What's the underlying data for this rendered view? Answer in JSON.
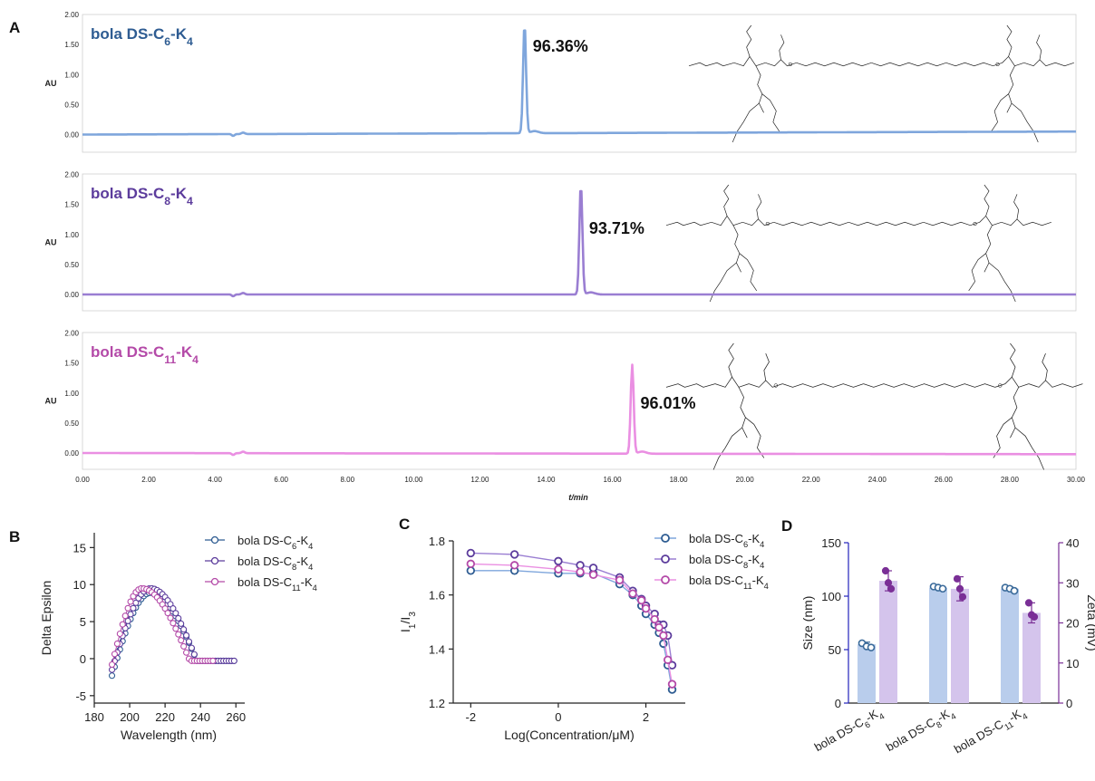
{
  "panels": {
    "A": "A",
    "B": "B",
    "C": "C",
    "D": "D"
  },
  "colors": {
    "c6": "#2e5c92",
    "c8": "#5c3c9c",
    "c11": "#b44aa8",
    "trace_c6": "#7fa6dc",
    "trace_c8": "#9a7ed2",
    "trace_c11": "#ea8fe2",
    "bar_size": "#b9cdec",
    "bar_zeta": "#d4c4ec",
    "dot_zeta": "#7a2f96",
    "dot_size": "#3a6a9a",
    "axis_size": "#2222bb",
    "axis_zeta": "#7a2f96"
  },
  "molecule_icon": "bola-dendrimer-structure",
  "chart_data": [
    {
      "type": "line",
      "id": "hplc",
      "xlabel": "t/min",
      "ylabel": "AU",
      "xlim": [
        0,
        30
      ],
      "ylim": [
        0,
        2
      ],
      "xticks": [
        "0.00",
        "2.00",
        "4.00",
        "6.00",
        "8.00",
        "10.00",
        "12.00",
        "14.00",
        "16.00",
        "18.00",
        "20.00",
        "22.00",
        "24.00",
        "26.00",
        "28.00",
        "30.00"
      ],
      "yticks": [
        "0.00",
        "0.50",
        "1.00",
        "1.50",
        "2.00"
      ],
      "traces": [
        {
          "name_main": "bola DS-C",
          "name_sub1": "6",
          "name_mid": "-K",
          "name_sub2": "4",
          "purity": "96.36%",
          "peak_time": 13.35,
          "peak_height": 1.83,
          "baseline_end": 0.05
        },
        {
          "name_main": "bola DS-C",
          "name_sub1": "8",
          "name_mid": "-K",
          "name_sub2": "4",
          "purity": "93.71%",
          "peak_time": 15.05,
          "peak_height": 1.84,
          "baseline_end": 0.0
        },
        {
          "name_main": "bola DS-C",
          "name_sub1": "11",
          "name_mid": "-K",
          "name_sub2": "4",
          "purity": "96.01%",
          "peak_time": 16.6,
          "peak_height": 1.48,
          "baseline_end": -0.02
        }
      ]
    },
    {
      "type": "scatter",
      "id": "cd",
      "xlabel": "Wavelength (nm)",
      "ylabel": "Delta Epsilon",
      "xlim": [
        180,
        265
      ],
      "ylim": [
        -6,
        17
      ],
      "xticks": [
        "180",
        "200",
        "220",
        "240",
        "260"
      ],
      "yticks": [
        "-5",
        "0",
        "5",
        "10",
        "15"
      ],
      "legend": "top-right",
      "series": [
        {
          "name_main": "bola DS-C",
          "name_sub1": "6",
          "name_mid": "-K",
          "name_sub2": "4",
          "peak_x": 212,
          "peak_y": 8.9,
          "start_y": -2.3,
          "end_x": 260
        },
        {
          "name_main": "bola DS-C",
          "name_sub1": "8",
          "name_mid": "-K",
          "name_sub2": "4",
          "peak_x": 212,
          "peak_y": 9.5,
          "start_y": -1.5,
          "end_x": 260
        },
        {
          "name_main": "bola DS-C",
          "name_sub1": "11",
          "name_mid": "-K",
          "name_sub2": "4",
          "peak_x": 207,
          "peak_y": 9.5,
          "start_y": -0.8,
          "end_x": 248
        }
      ]
    },
    {
      "type": "line",
      "id": "cac",
      "xlabel": "Log(Concentration/μM)",
      "ylabel_main": "I",
      "ylabel_sub1": "1",
      "ylabel_mid": "/I",
      "ylabel_sub2": "3",
      "xlim": [
        -2.4,
        2.9
      ],
      "ylim": [
        1.2,
        1.8
      ],
      "xticks": [
        "-2",
        "0",
        "2"
      ],
      "yticks": [
        "1.2",
        "1.4",
        "1.6",
        "1.8"
      ],
      "legend": "top-right",
      "x": [
        -2,
        -1,
        0,
        0.5,
        0.8,
        1.4,
        1.7,
        1.9,
        2.0,
        2.2,
        2.3,
        2.4,
        2.5,
        2.6
      ],
      "series": [
        {
          "name_main": "bola DS-C",
          "name_sub1": "6",
          "name_mid": "-K",
          "name_sub2": "4",
          "values": [
            1.69,
            1.69,
            1.68,
            1.68,
            1.68,
            1.64,
            1.6,
            1.56,
            1.53,
            1.49,
            1.46,
            1.42,
            1.34,
            1.25
          ]
        },
        {
          "name_main": "bola DS-C",
          "name_sub1": "8",
          "name_mid": "-K",
          "name_sub2": "4",
          "values": [
            1.755,
            1.75,
            1.725,
            1.71,
            1.7,
            1.665,
            1.615,
            1.585,
            1.56,
            1.53,
            1.49,
            1.49,
            1.45,
            1.34
          ]
        },
        {
          "name_main": "bola DS-C",
          "name_sub1": "11",
          "name_mid": "-K",
          "name_sub2": "4",
          "values": [
            1.715,
            1.71,
            1.695,
            1.685,
            1.675,
            1.655,
            1.605,
            1.58,
            1.55,
            1.51,
            1.48,
            1.45,
            1.36,
            1.27
          ]
        }
      ]
    },
    {
      "type": "bar",
      "id": "dls",
      "ylabel_left": "Size (nm)",
      "ylabel_right": "Zeta (mV)",
      "ylim_left": [
        0,
        150
      ],
      "ylim_right": [
        0,
        40
      ],
      "yticks_left": [
        "0",
        "50",
        "100",
        "150"
      ],
      "yticks_right": [
        "0",
        "10",
        "20",
        "30",
        "40"
      ],
      "groups": [
        {
          "label_main": "bola DS-C",
          "label_sub1": "6",
          "label_mid": "-K",
          "label_sub2": "4",
          "size": 55,
          "size_points": [
            56,
            53,
            52
          ],
          "size_err": 2,
          "zeta": 30.5,
          "zeta_points": [
            33,
            30,
            28.5
          ],
          "zeta_err": 2.5
        },
        {
          "label_main": "bola DS-C",
          "label_sub1": "8",
          "label_mid": "-K",
          "label_sub2": "4",
          "size": 108,
          "size_points": [
            109,
            108,
            107
          ],
          "size_err": 1,
          "zeta": 28.5,
          "zeta_points": [
            31,
            28.5,
            26.5
          ],
          "zeta_err": 3
        },
        {
          "label_main": "bola DS-C",
          "label_sub1": "11",
          "label_mid": "-K",
          "label_sub2": "4",
          "size": 107,
          "size_points": [
            108,
            107,
            105
          ],
          "size_err": 1.5,
          "zeta": 22.5,
          "zeta_points": [
            25,
            22,
            21.5
          ],
          "zeta_err": 2.5
        }
      ]
    }
  ]
}
